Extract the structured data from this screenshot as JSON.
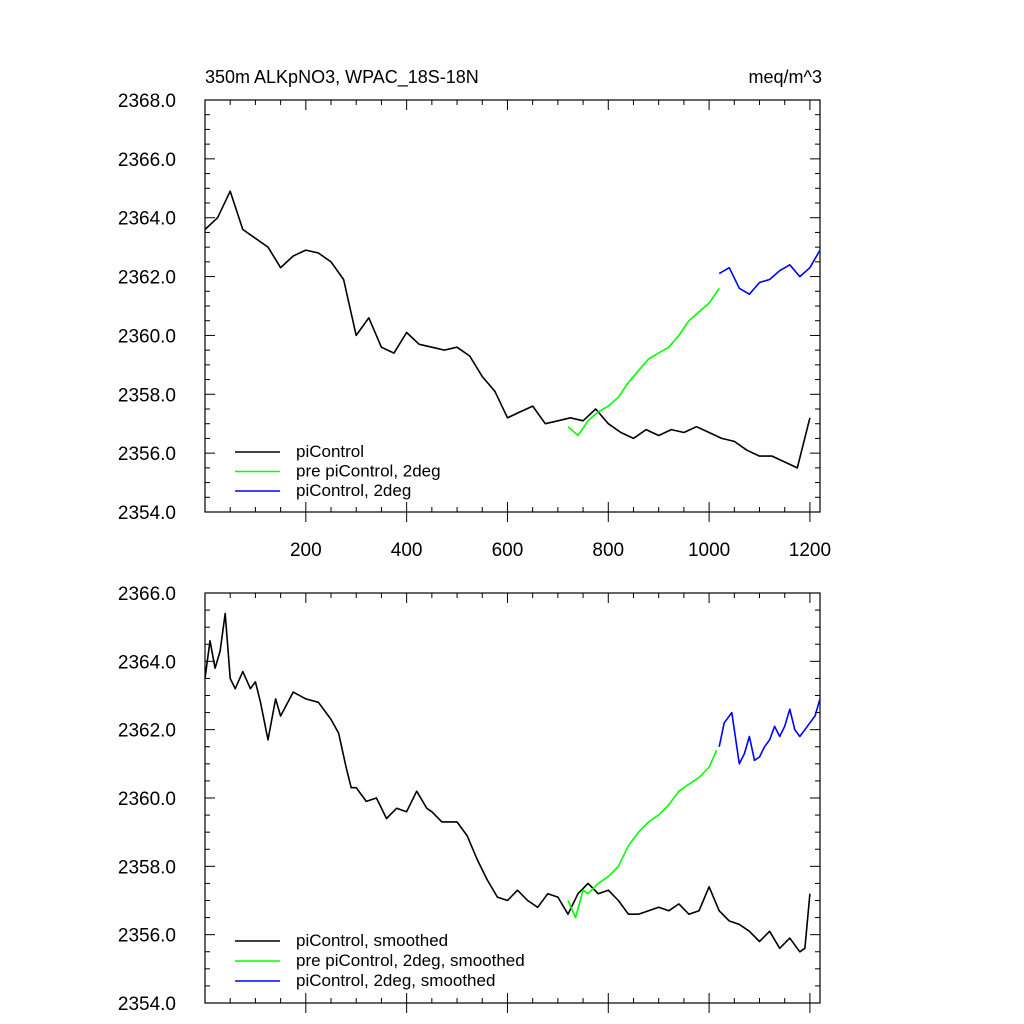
{
  "chart_data": [
    {
      "type": "line",
      "title_left": "350m ALKpNO3, WPAC_18S-18N",
      "title_right": "meq/m^3",
      "xlim": [
        0,
        1220
      ],
      "ylim": [
        2354.0,
        2368.0
      ],
      "x_ticks": [
        200,
        400,
        600,
        800,
        1000,
        1200
      ],
      "x_tick_labels": [
        "200",
        "400",
        "600",
        "800",
        "1000",
        "1200"
      ],
      "y_ticks": [
        2354.0,
        2356.0,
        2358.0,
        2360.0,
        2362.0,
        2364.0,
        2366.0,
        2368.0
      ],
      "y_tick_labels": [
        "2354.0",
        "2356.0",
        "2358.0",
        "2360.0",
        "2362.0",
        "2364.0",
        "2366.0",
        "2368.0"
      ],
      "legend_position": "bottom-left",
      "series": [
        {
          "name": "piControl",
          "color": "#000000",
          "x": [
            0,
            25,
            50,
            75,
            100,
            125,
            150,
            175,
            200,
            225,
            250,
            275,
            300,
            325,
            350,
            375,
            400,
            425,
            450,
            475,
            500,
            525,
            550,
            575,
            600,
            625,
            650,
            675,
            700,
            725,
            750,
            775,
            800,
            825,
            850,
            875,
            900,
            925,
            950,
            975,
            1000,
            1025,
            1050,
            1075,
            1100,
            1125,
            1150,
            1175,
            1200
          ],
          "y": [
            2363.6,
            2364.0,
            2364.9,
            2363.6,
            2363.3,
            2363.0,
            2362.3,
            2362.7,
            2362.9,
            2362.8,
            2362.5,
            2361.9,
            2360.0,
            2360.6,
            2359.6,
            2359.4,
            2360.1,
            2359.7,
            2359.6,
            2359.5,
            2359.6,
            2359.3,
            2358.6,
            2358.1,
            2357.2,
            2357.4,
            2357.6,
            2357.0,
            2357.1,
            2357.2,
            2357.1,
            2357.5,
            2357.0,
            2356.7,
            2356.5,
            2356.8,
            2356.6,
            2356.8,
            2356.7,
            2356.9,
            2356.7,
            2356.5,
            2356.4,
            2356.1,
            2355.9,
            2355.9,
            2355.7,
            2355.5,
            2357.2
          ]
        },
        {
          "name": "pre piControl, 2deg",
          "color": "#00ff00",
          "x": [
            720,
            740,
            760,
            780,
            800,
            820,
            840,
            860,
            880,
            900,
            920,
            940,
            960,
            980,
            1000,
            1020
          ],
          "y": [
            2356.9,
            2356.6,
            2357.1,
            2357.4,
            2357.6,
            2357.9,
            2358.4,
            2358.8,
            2359.2,
            2359.4,
            2359.6,
            2360.0,
            2360.5,
            2360.8,
            2361.1,
            2361.6
          ]
        },
        {
          "name": "piControl, 2deg",
          "color": "#0000ff",
          "x": [
            1020,
            1040,
            1060,
            1080,
            1100,
            1120,
            1140,
            1160,
            1180,
            1200,
            1220
          ],
          "y": [
            2362.1,
            2362.3,
            2361.6,
            2361.4,
            2361.8,
            2361.9,
            2362.2,
            2362.4,
            2362.0,
            2362.3,
            2362.9
          ]
        }
      ]
    },
    {
      "type": "line",
      "xlim": [
        0,
        1220
      ],
      "ylim": [
        2354.0,
        2366.0
      ],
      "x_ticks": [
        200,
        400,
        600,
        800,
        1000,
        1200
      ],
      "y_ticks": [
        2354.0,
        2356.0,
        2358.0,
        2360.0,
        2362.0,
        2364.0,
        2366.0
      ],
      "y_tick_labels": [
        "2354.0",
        "2356.0",
        "2358.0",
        "2360.0",
        "2362.0",
        "2364.0",
        "2366.0"
      ],
      "legend_position": "bottom-left",
      "series": [
        {
          "name": "piControl, smoothed",
          "color": "#000000",
          "x": [
            0,
            10,
            20,
            30,
            40,
            50,
            60,
            75,
            90,
            100,
            110,
            125,
            140,
            150,
            175,
            200,
            225,
            250,
            265,
            280,
            290,
            300,
            320,
            340,
            360,
            380,
            400,
            420,
            440,
            450,
            470,
            500,
            520,
            540,
            560,
            580,
            600,
            620,
            640,
            660,
            680,
            700,
            720,
            740,
            760,
            780,
            800,
            820,
            840,
            860,
            880,
            900,
            920,
            940,
            960,
            980,
            1000,
            1020,
            1040,
            1060,
            1080,
            1100,
            1120,
            1140,
            1160,
            1180,
            1190,
            1200
          ],
          "y": [
            2363.5,
            2364.6,
            2363.8,
            2364.3,
            2365.4,
            2363.5,
            2363.2,
            2363.7,
            2363.2,
            2363.4,
            2362.8,
            2361.7,
            2362.9,
            2362.4,
            2363.1,
            2362.9,
            2362.8,
            2362.3,
            2361.9,
            2360.9,
            2360.3,
            2360.3,
            2359.9,
            2360.0,
            2359.4,
            2359.7,
            2359.6,
            2360.2,
            2359.7,
            2359.6,
            2359.3,
            2359.3,
            2358.9,
            2358.2,
            2357.6,
            2357.1,
            2357.0,
            2357.3,
            2357.0,
            2356.8,
            2357.2,
            2357.1,
            2356.6,
            2357.2,
            2357.5,
            2357.2,
            2357.3,
            2357.0,
            2356.6,
            2356.6,
            2356.7,
            2356.8,
            2356.7,
            2356.9,
            2356.6,
            2356.7,
            2357.4,
            2356.7,
            2356.4,
            2356.3,
            2356.1,
            2355.8,
            2356.1,
            2355.6,
            2355.9,
            2355.5,
            2355.6,
            2357.2
          ]
        },
        {
          "name": "pre piControl, 2deg, smoothed",
          "color": "#00ff00",
          "x": [
            720,
            735,
            750,
            760,
            780,
            800,
            820,
            840,
            860,
            880,
            900,
            920,
            940,
            960,
            980,
            1000,
            1015
          ],
          "y": [
            2357.0,
            2356.5,
            2357.3,
            2357.2,
            2357.5,
            2357.7,
            2358.0,
            2358.6,
            2359.0,
            2359.3,
            2359.5,
            2359.8,
            2360.2,
            2360.4,
            2360.6,
            2360.9,
            2361.4
          ]
        },
        {
          "name": "piControl, 2deg, smoothed",
          "color": "#0000ff",
          "x": [
            1020,
            1030,
            1045,
            1060,
            1070,
            1080,
            1090,
            1100,
            1110,
            1120,
            1130,
            1140,
            1150,
            1160,
            1170,
            1180,
            1190,
            1200,
            1210,
            1220
          ],
          "y": [
            2361.5,
            2362.2,
            2362.5,
            2361.0,
            2361.3,
            2361.8,
            2361.1,
            2361.2,
            2361.5,
            2361.7,
            2362.1,
            2361.8,
            2362.1,
            2362.6,
            2362.0,
            2361.8,
            2362.0,
            2362.2,
            2362.4,
            2362.9
          ]
        }
      ]
    }
  ]
}
